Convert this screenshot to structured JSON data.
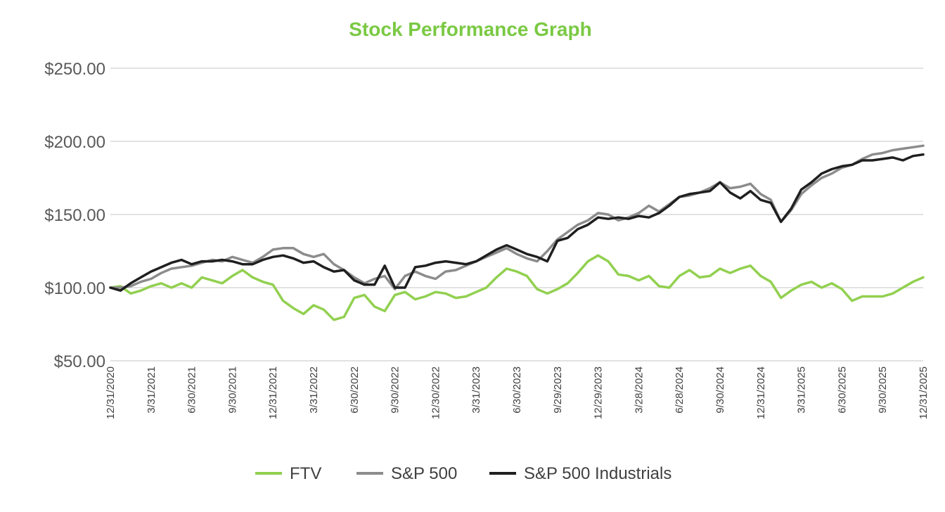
{
  "chart_data": {
    "type": "line",
    "title": "Stock Performance Graph",
    "title_color": "#7ac943",
    "xlabel": "",
    "ylabel": "",
    "ylim": [
      50,
      250
    ],
    "y_ticks": [
      50,
      100,
      150,
      200,
      250
    ],
    "y_tick_labels": [
      "$50.00",
      "$100.00",
      "$150.00",
      "$200.00",
      "$250.00"
    ],
    "gridlines": true,
    "legend_position": "bottom-center",
    "x_tick_labels": [
      "12/31/2020",
      "3/31/2021",
      "6/30/2021",
      "9/30/2021",
      "12/31/2021",
      "3/31/2022",
      "6/30/2022",
      "9/30/2022",
      "12/30/2022",
      "3/31/2023",
      "6/30/2023",
      "9/29/2023",
      "12/29/2023",
      "3/28/2024",
      "6/28/2024",
      "9/30/2024",
      "12/31/2024",
      "3/31/2025",
      "6/30/2025",
      "9/30/2025",
      "12/31/2025"
    ],
    "series": [
      {
        "name": "FTV",
        "color": "#92d050",
        "values": [
          [
            0,
            100
          ],
          [
            0.5,
            101
          ],
          [
            1,
            96
          ],
          [
            1.5,
            98
          ],
          [
            2,
            101
          ],
          [
            2.5,
            103
          ],
          [
            3,
            100
          ],
          [
            3.5,
            103
          ],
          [
            4,
            100
          ],
          [
            4.5,
            107
          ],
          [
            5,
            105
          ],
          [
            5.5,
            103
          ],
          [
            6,
            108
          ],
          [
            6.5,
            112
          ],
          [
            7,
            107
          ],
          [
            7.5,
            104
          ],
          [
            8,
            102
          ],
          [
            8.5,
            91
          ],
          [
            9,
            86
          ],
          [
            9.5,
            82
          ],
          [
            10,
            88
          ],
          [
            10.5,
            85
          ],
          [
            11,
            78
          ],
          [
            11.5,
            80
          ],
          [
            12,
            93
          ],
          [
            12.5,
            95
          ],
          [
            13,
            87
          ],
          [
            13.5,
            84
          ],
          [
            14,
            95
          ],
          [
            14.5,
            97
          ],
          [
            15,
            92
          ],
          [
            15.5,
            94
          ],
          [
            16,
            97
          ],
          [
            16.5,
            96
          ],
          [
            17,
            93
          ],
          [
            17.5,
            94
          ],
          [
            18,
            97
          ],
          [
            18.5,
            100
          ],
          [
            19,
            107
          ],
          [
            19.5,
            113
          ],
          [
            20,
            111
          ],
          [
            20.5,
            108
          ],
          [
            21,
            99
          ],
          [
            21.5,
            96
          ],
          [
            22,
            99
          ],
          [
            22.5,
            103
          ],
          [
            23,
            110
          ],
          [
            23.5,
            118
          ],
          [
            24,
            122
          ],
          [
            24.5,
            118
          ],
          [
            25,
            109
          ],
          [
            25.5,
            108
          ],
          [
            26,
            105
          ],
          [
            26.5,
            108
          ],
          [
            27,
            101
          ],
          [
            27.5,
            100
          ],
          [
            28,
            108
          ],
          [
            28.5,
            112
          ],
          [
            29,
            107
          ],
          [
            29.5,
            108
          ],
          [
            30,
            113
          ],
          [
            30.5,
            110
          ],
          [
            31,
            113
          ],
          [
            31.5,
            115
          ],
          [
            32,
            108
          ],
          [
            32.5,
            104
          ],
          [
            33,
            93
          ],
          [
            33.5,
            98
          ],
          [
            34,
            102
          ],
          [
            34.5,
            104
          ],
          [
            35,
            100
          ],
          [
            35.5,
            103
          ],
          [
            36,
            99
          ],
          [
            36.5,
            91
          ],
          [
            37,
            94
          ],
          [
            37.5,
            94
          ],
          [
            38,
            94
          ],
          [
            38.5,
            96
          ],
          [
            39,
            100
          ],
          [
            39.5,
            104
          ],
          [
            40,
            107
          ]
        ]
      },
      {
        "name": "S&P 500",
        "color": "#8c8c8c",
        "values": [
          [
            0,
            100
          ],
          [
            0.5,
            100
          ],
          [
            1,
            101
          ],
          [
            1.5,
            104
          ],
          [
            2,
            106
          ],
          [
            2.5,
            110
          ],
          [
            3,
            113
          ],
          [
            3.5,
            114
          ],
          [
            4,
            115
          ],
          [
            4.5,
            117
          ],
          [
            5,
            119
          ],
          [
            5.5,
            118
          ],
          [
            6,
            121
          ],
          [
            6.5,
            119
          ],
          [
            7,
            117
          ],
          [
            7.5,
            121
          ],
          [
            8,
            126
          ],
          [
            8.5,
            127
          ],
          [
            9,
            127
          ],
          [
            9.5,
            123
          ],
          [
            10,
            121
          ],
          [
            10.5,
            123
          ],
          [
            11,
            116
          ],
          [
            11.5,
            112
          ],
          [
            12,
            107
          ],
          [
            12.5,
            103
          ],
          [
            13,
            106
          ],
          [
            13.5,
            108
          ],
          [
            14,
            99
          ],
          [
            14.5,
            108
          ],
          [
            15,
            111
          ],
          [
            15.5,
            108
          ],
          [
            16,
            106
          ],
          [
            16.5,
            111
          ],
          [
            17,
            112
          ],
          [
            17.5,
            115
          ],
          [
            18,
            118
          ],
          [
            18.5,
            121
          ],
          [
            19,
            124
          ],
          [
            19.5,
            127
          ],
          [
            20,
            123
          ],
          [
            20.5,
            120
          ],
          [
            21,
            118
          ],
          [
            21.5,
            125
          ],
          [
            22,
            133
          ],
          [
            22.5,
            138
          ],
          [
            23,
            143
          ],
          [
            23.5,
            146
          ],
          [
            24,
            151
          ],
          [
            24.5,
            150
          ],
          [
            25,
            146
          ],
          [
            25.5,
            148
          ],
          [
            26,
            151
          ],
          [
            26.5,
            156
          ],
          [
            27,
            152
          ],
          [
            27.5,
            157
          ],
          [
            28,
            162
          ],
          [
            28.5,
            163
          ],
          [
            29,
            165
          ],
          [
            29.5,
            168
          ],
          [
            30,
            172
          ],
          [
            30.5,
            168
          ],
          [
            31,
            169
          ],
          [
            31.5,
            171
          ],
          [
            32,
            164
          ],
          [
            32.5,
            160
          ],
          [
            33,
            145
          ],
          [
            33.5,
            153
          ],
          [
            34,
            164
          ],
          [
            34.5,
            170
          ],
          [
            35,
            175
          ],
          [
            35.5,
            178
          ],
          [
            36,
            182
          ],
          [
            36.5,
            184
          ],
          [
            37,
            188
          ],
          [
            37.5,
            191
          ],
          [
            38,
            192
          ],
          [
            38.5,
            194
          ],
          [
            39,
            195
          ],
          [
            39.5,
            196
          ],
          [
            40,
            197
          ]
        ]
      },
      {
        "name": "S&P 500 Industrials",
        "color": "#1f1f1f",
        "values": [
          [
            0,
            100
          ],
          [
            0.5,
            98
          ],
          [
            1,
            103
          ],
          [
            1.5,
            107
          ],
          [
            2,
            111
          ],
          [
            2.5,
            114
          ],
          [
            3,
            117
          ],
          [
            3.5,
            119
          ],
          [
            4,
            116
          ],
          [
            4.5,
            118
          ],
          [
            5,
            118
          ],
          [
            5.5,
            119
          ],
          [
            6,
            118
          ],
          [
            6.5,
            116
          ],
          [
            7,
            116
          ],
          [
            7.5,
            119
          ],
          [
            8,
            121
          ],
          [
            8.5,
            122
          ],
          [
            9,
            120
          ],
          [
            9.5,
            117
          ],
          [
            10,
            118
          ],
          [
            10.5,
            114
          ],
          [
            11,
            111
          ],
          [
            11.5,
            112
          ],
          [
            12,
            105
          ],
          [
            12.5,
            102
          ],
          [
            13,
            102
          ],
          [
            13.5,
            115
          ],
          [
            14,
            100
          ],
          [
            14.5,
            100
          ],
          [
            15,
            114
          ],
          [
            15.5,
            115
          ],
          [
            16,
            117
          ],
          [
            16.5,
            118
          ],
          [
            17,
            117
          ],
          [
            17.5,
            116
          ],
          [
            18,
            118
          ],
          [
            18.5,
            122
          ],
          [
            19,
            126
          ],
          [
            19.5,
            129
          ],
          [
            20,
            126
          ],
          [
            20.5,
            123
          ],
          [
            21,
            121
          ],
          [
            21.5,
            118
          ],
          [
            22,
            132
          ],
          [
            22.5,
            134
          ],
          [
            23,
            140
          ],
          [
            23.5,
            143
          ],
          [
            24,
            148
          ],
          [
            24.5,
            147
          ],
          [
            25,
            148
          ],
          [
            25.5,
            147
          ],
          [
            26,
            149
          ],
          [
            26.5,
            148
          ],
          [
            27,
            151
          ],
          [
            27.5,
            156
          ],
          [
            28,
            162
          ],
          [
            28.5,
            164
          ],
          [
            29,
            165
          ],
          [
            29.5,
            166
          ],
          [
            30,
            172
          ],
          [
            30.5,
            165
          ],
          [
            31,
            161
          ],
          [
            31.5,
            166
          ],
          [
            32,
            160
          ],
          [
            32.5,
            158
          ],
          [
            33,
            145
          ],
          [
            33.5,
            154
          ],
          [
            34,
            167
          ],
          [
            34.5,
            172
          ],
          [
            35,
            178
          ],
          [
            35.5,
            181
          ],
          [
            36,
            183
          ],
          [
            36.5,
            184
          ],
          [
            37,
            187
          ],
          [
            37.5,
            187
          ],
          [
            38,
            188
          ],
          [
            38.5,
            189
          ],
          [
            39,
            187
          ],
          [
            39.5,
            190
          ],
          [
            40,
            191
          ]
        ]
      }
    ]
  }
}
